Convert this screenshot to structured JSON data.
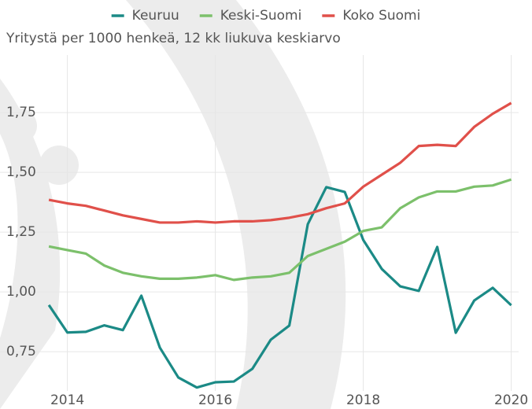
{
  "chart_data": {
    "type": "line",
    "subtitle": "Yritystä per 1000 henkeä, 12 kk liukuva keskiarvo",
    "x": [
      2013.75,
      2014,
      2014.25,
      2014.5,
      2014.75,
      2015,
      2015.25,
      2015.5,
      2015.75,
      2016,
      2016.25,
      2016.5,
      2016.75,
      2017,
      2017.25,
      2017.5,
      2017.75,
      2018,
      2018.25,
      2018.5,
      2018.75,
      2019,
      2019.25,
      2019.5,
      2019.75,
      2020
    ],
    "series": [
      {
        "name": "Keuruu",
        "color": "#1b8a86",
        "values": [
          0.945,
          0.83,
          0.833,
          0.86,
          0.84,
          0.984,
          0.767,
          0.642,
          0.6,
          0.622,
          0.625,
          0.678,
          0.8,
          0.859,
          1.283,
          1.438,
          1.418,
          1.217,
          1.096,
          1.023,
          1.004,
          1.188,
          0.829,
          0.964,
          1.017,
          0.944
        ]
      },
      {
        "name": "Keski-Suomi",
        "color": "#7cc06b",
        "values": [
          1.19,
          1.175,
          1.16,
          1.11,
          1.08,
          1.065,
          1.055,
          1.055,
          1.06,
          1.07,
          1.05,
          1.06,
          1.065,
          1.08,
          1.15,
          1.18,
          1.21,
          1.255,
          1.27,
          1.35,
          1.395,
          1.42,
          1.42,
          1.44,
          1.445,
          1.47
        ]
      },
      {
        "name": "Koko Suomi",
        "color": "#e0504a",
        "values": [
          1.385,
          1.37,
          1.36,
          1.34,
          1.32,
          1.305,
          1.29,
          1.29,
          1.295,
          1.29,
          1.295,
          1.295,
          1.3,
          1.31,
          1.325,
          1.35,
          1.37,
          1.44,
          1.49,
          1.54,
          1.61,
          1.615,
          1.61,
          1.69,
          1.745,
          1.79
        ]
      }
    ],
    "xlim": [
      2013.6,
      2020.1
    ],
    "xticks": [
      2014,
      2016,
      2018,
      2020
    ],
    "ylim": [
      0.52,
      1.9
    ],
    "yticks": [
      {
        "value": 0.75,
        "label": "0,75"
      },
      {
        "value": 1,
        "label": "1,00"
      },
      {
        "value": 1.25,
        "label": "1,25"
      },
      {
        "value": 1.5,
        "label": "1,50"
      },
      {
        "value": 1.75,
        "label": "1,75"
      }
    ],
    "grid": true
  }
}
